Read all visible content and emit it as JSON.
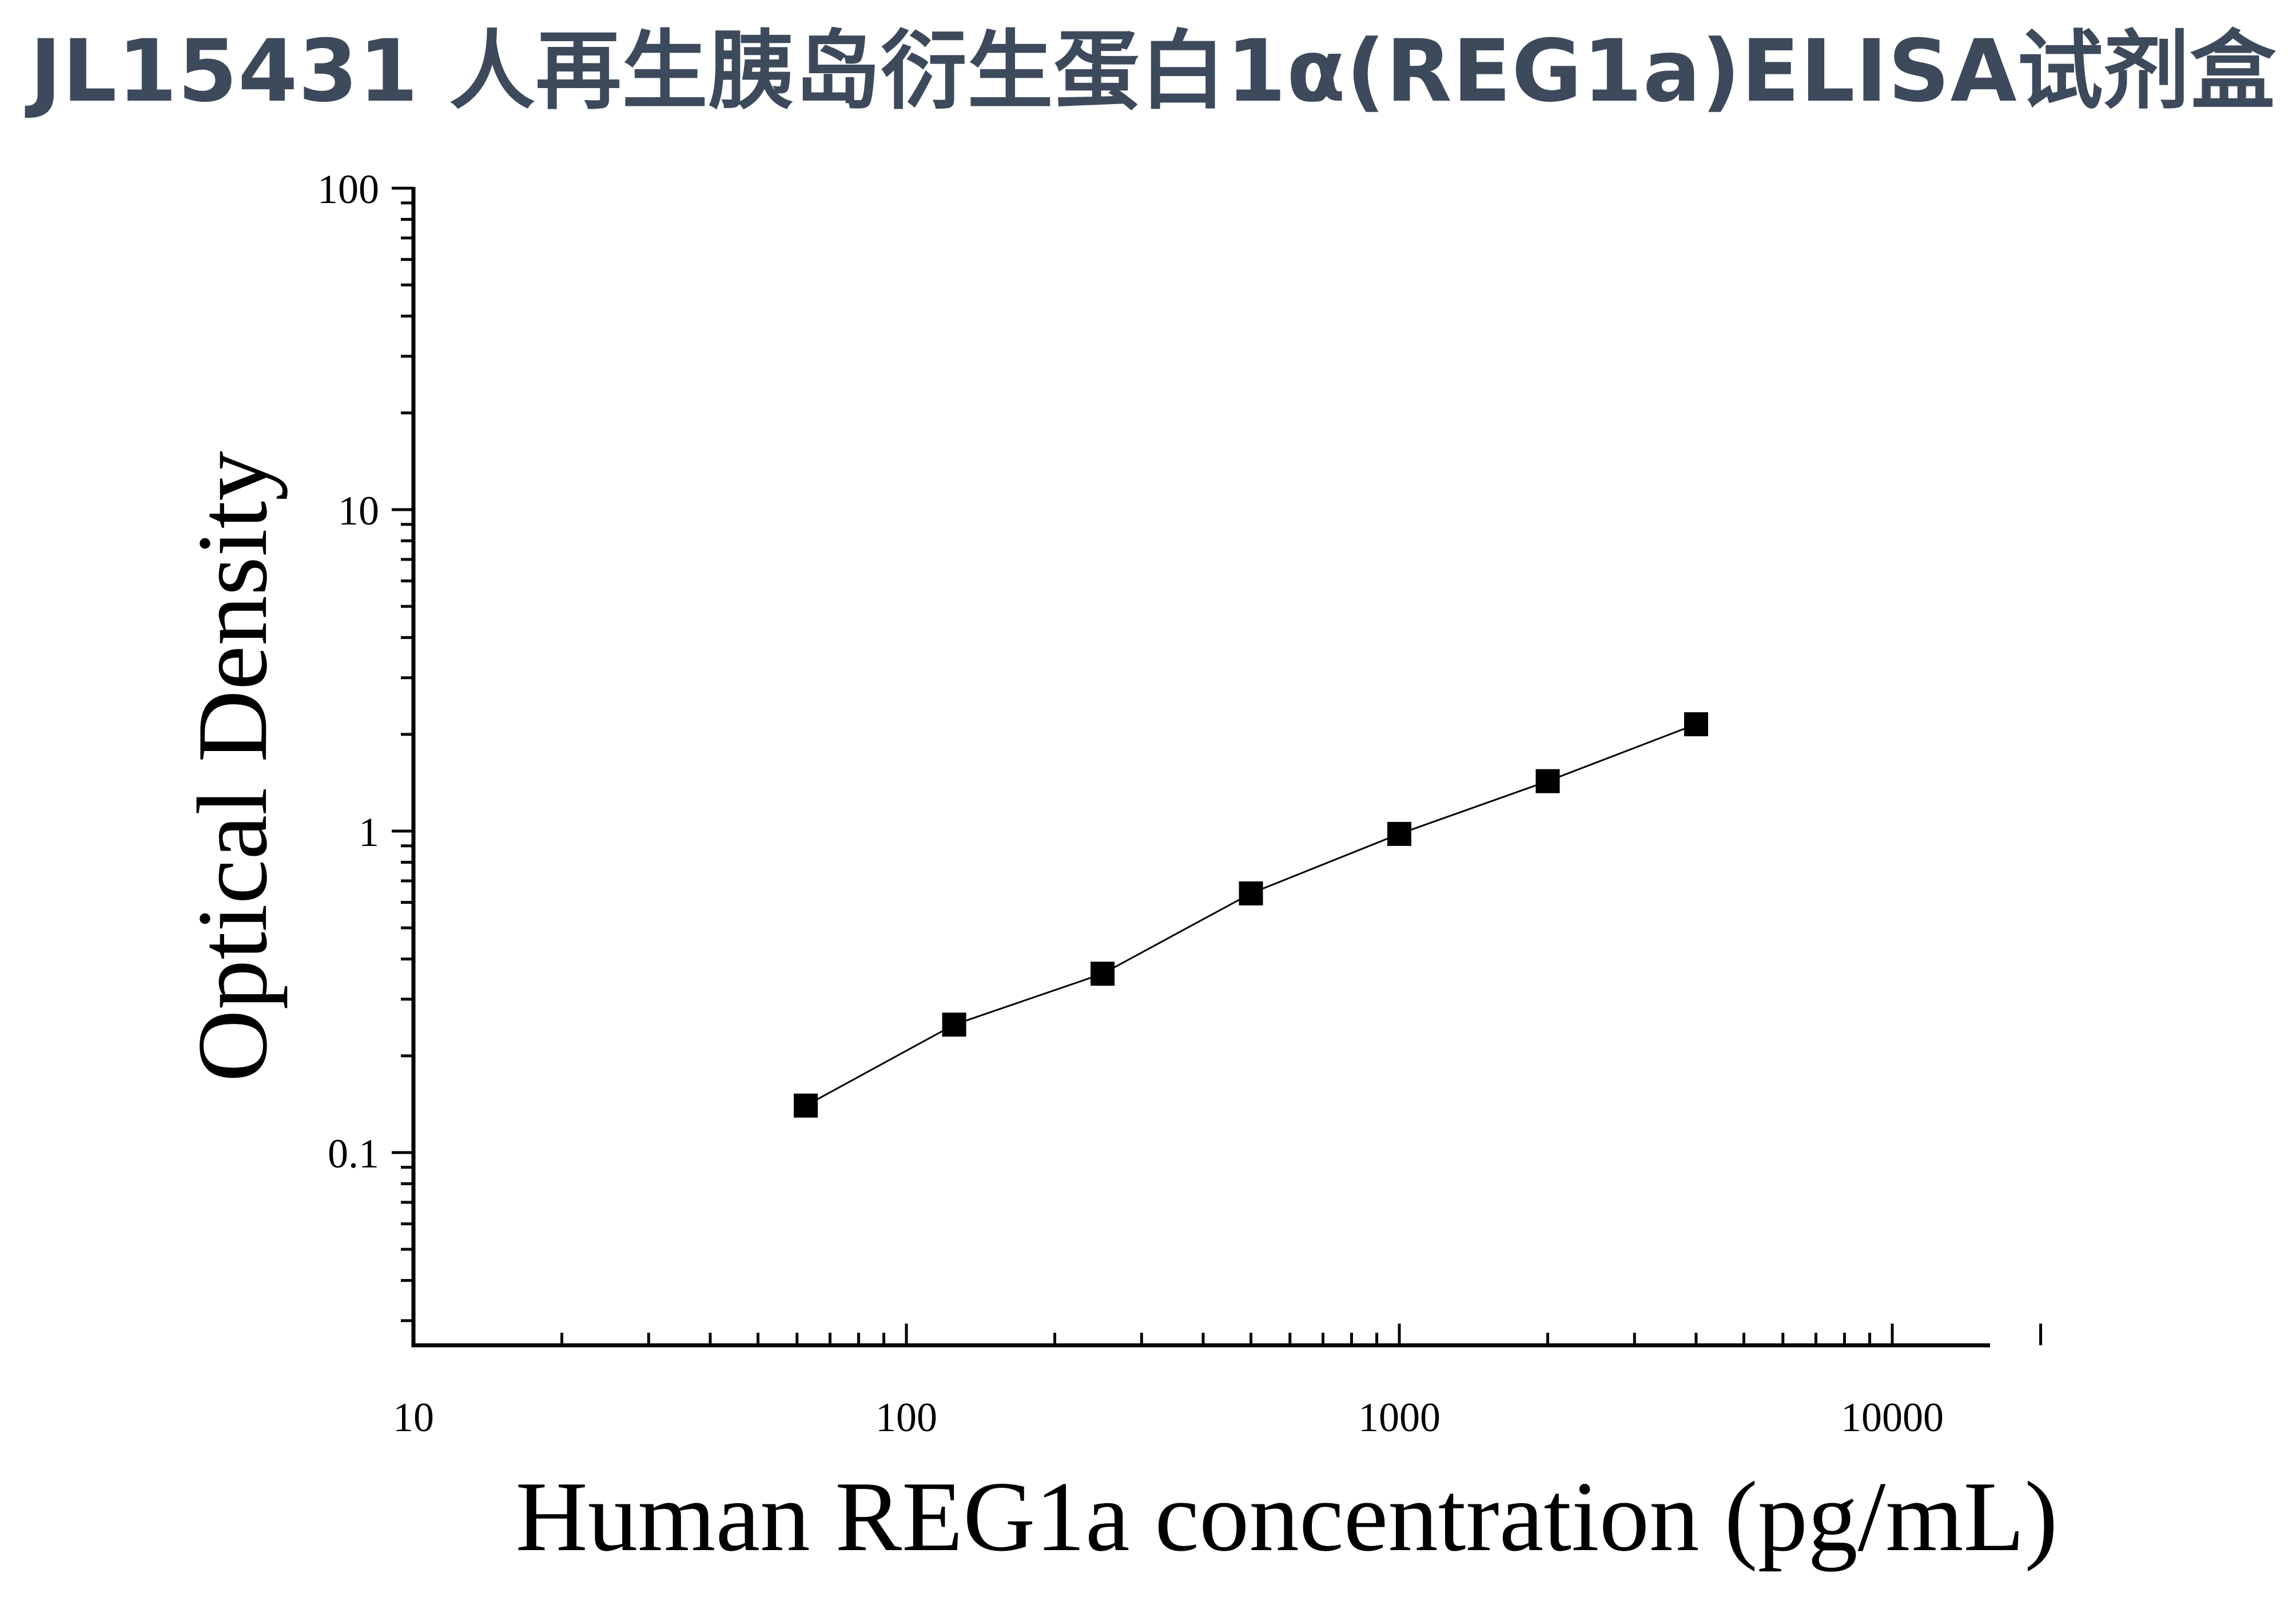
{
  "title": "JL15431 人再生胰岛衍生蛋白1α(REG1a)ELISA试剂盒",
  "chart_data": {
    "type": "scatter",
    "xlabel": "Human REG1a concentration (pg/mL)",
    "ylabel": "Optical Density",
    "x_scale": "log",
    "y_scale": "log",
    "xlim": [
      10,
      20000
    ],
    "ylim": [
      0.025,
      100
    ],
    "x_ticks": [
      {
        "value": 10,
        "label": "10"
      },
      {
        "value": 100,
        "label": "100"
      },
      {
        "value": 1000,
        "label": "1000"
      },
      {
        "value": 10000,
        "label": "10000"
      }
    ],
    "y_ticks": [
      {
        "value": 0.1,
        "label": "0.1"
      },
      {
        "value": 1,
        "label": "1"
      },
      {
        "value": 10,
        "label": "10"
      },
      {
        "value": 100,
        "label": "100"
      }
    ],
    "grid": false,
    "series": [
      {
        "marker": "square",
        "color": "#000000",
        "fit_line": true,
        "points": [
          {
            "x": 62.5,
            "y": 0.14
          },
          {
            "x": 125,
            "y": 0.25
          },
          {
            "x": 250,
            "y": 0.36
          },
          {
            "x": 500,
            "y": 0.64
          },
          {
            "x": 1000,
            "y": 0.98
          },
          {
            "x": 2000,
            "y": 1.43
          },
          {
            "x": 4000,
            "y": 2.15
          }
        ]
      }
    ]
  }
}
